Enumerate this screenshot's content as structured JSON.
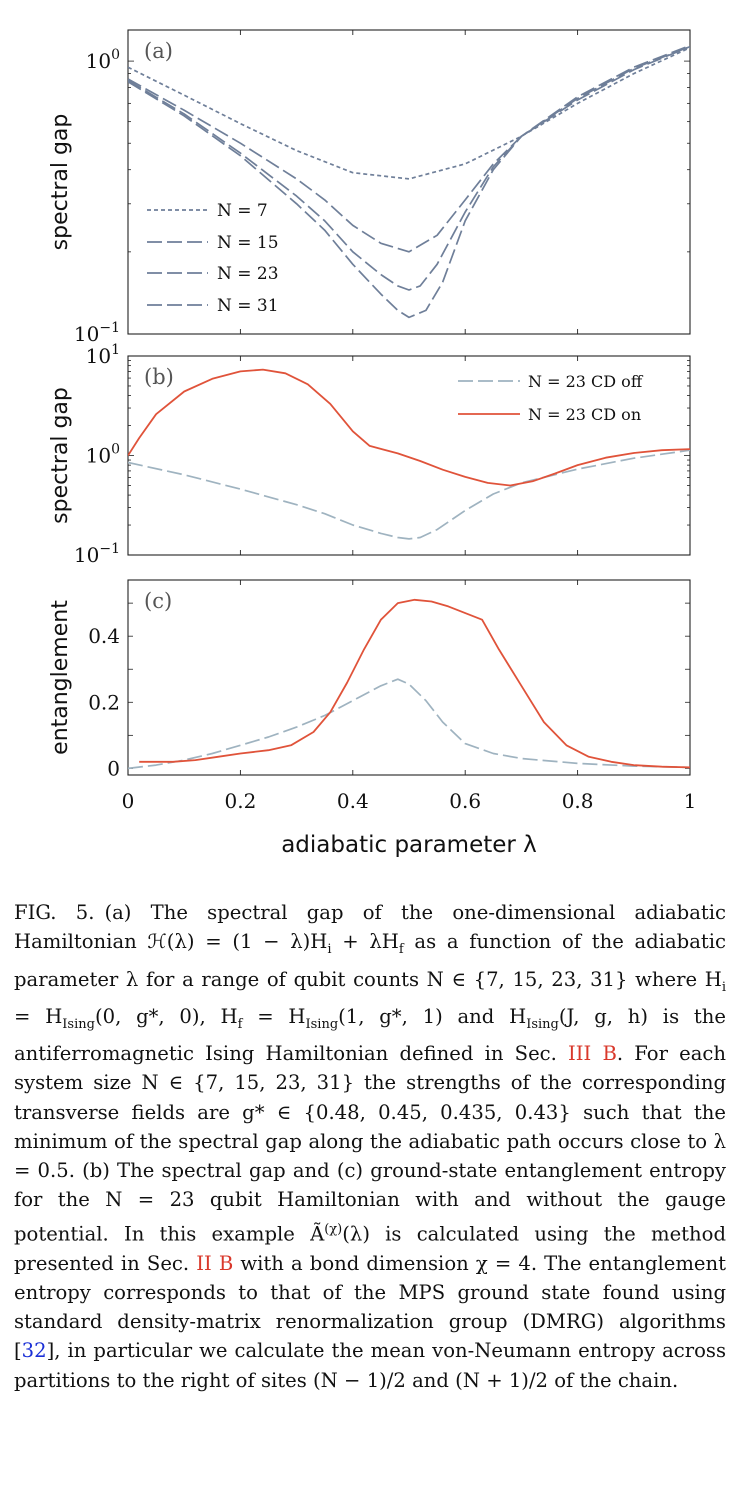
{
  "figure": {
    "xlabel": "adiabatic parameter λ",
    "xticks": [
      "0",
      "0.2",
      "0.4",
      "0.6",
      "0.8",
      "1"
    ],
    "xlim": [
      0,
      1
    ],
    "panels": [
      {
        "id": "a",
        "label": "(a)",
        "ylabel": "spectral gap",
        "scale": "log",
        "ylim": [
          0.1,
          1.3
        ],
        "yticks": [
          {
            "v": 1,
            "b": "10",
            "e": "0"
          },
          {
            "v": 0.1,
            "b": "10",
            "e": "−1"
          }
        ],
        "legend_position": "lower-left"
      },
      {
        "id": "b",
        "label": "(b)",
        "ylabel": "spectral gap",
        "scale": "log",
        "ylim": [
          0.1,
          10
        ],
        "yticks": [
          {
            "v": 10,
            "b": "10",
            "e": "1"
          },
          {
            "v": 1,
            "b": "10",
            "e": "0"
          },
          {
            "v": 0.1,
            "b": "10",
            "e": "−1"
          }
        ],
        "legend_position": "top-right"
      },
      {
        "id": "c",
        "label": "(c)",
        "ylabel": "entanglement",
        "scale": "linear",
        "ylim": [
          -0.02,
          0.57
        ],
        "yticks": [
          {
            "v": 0.4,
            "t": "0.4"
          },
          {
            "v": 0.2,
            "t": "0.2"
          },
          {
            "v": 0,
            "t": "0"
          }
        ],
        "legend_position": "none"
      }
    ]
  },
  "chart_data": [
    {
      "type": "line",
      "panel": "a",
      "y_scale": "log",
      "xlim": [
        0,
        1
      ],
      "ylim": [
        0.1,
        1.3
      ],
      "series": [
        {
          "name": "N = 7",
          "style": "dotted",
          "color": "#6f7f99",
          "x": [
            0,
            0.1,
            0.2,
            0.3,
            0.4,
            0.5,
            0.6,
            0.7,
            0.8,
            0.9,
            1.0
          ],
          "y": [
            0.95,
            0.75,
            0.59,
            0.47,
            0.39,
            0.37,
            0.42,
            0.53,
            0.7,
            0.9,
            1.12
          ]
        },
        {
          "name": "N = 15",
          "style": "dashed",
          "color": "#6f7f99",
          "x": [
            0,
            0.1,
            0.2,
            0.3,
            0.35,
            0.4,
            0.45,
            0.5,
            0.55,
            0.6,
            0.65,
            0.7,
            0.8,
            0.9,
            1.0
          ],
          "y": [
            0.86,
            0.66,
            0.5,
            0.37,
            0.31,
            0.25,
            0.215,
            0.2,
            0.23,
            0.31,
            0.42,
            0.53,
            0.72,
            0.93,
            1.13
          ]
        },
        {
          "name": "N = 23",
          "style": "dashed",
          "color": "#6f7f99",
          "x": [
            0,
            0.1,
            0.2,
            0.3,
            0.35,
            0.4,
            0.45,
            0.48,
            0.5,
            0.52,
            0.55,
            0.6,
            0.65,
            0.7,
            0.8,
            0.9,
            1.0
          ],
          "y": [
            0.85,
            0.64,
            0.46,
            0.32,
            0.26,
            0.2,
            0.165,
            0.15,
            0.145,
            0.15,
            0.18,
            0.28,
            0.41,
            0.53,
            0.73,
            0.94,
            1.13
          ]
        },
        {
          "name": "N = 31",
          "style": "dashed",
          "color": "#6f7f99",
          "x": [
            0,
            0.1,
            0.2,
            0.3,
            0.35,
            0.4,
            0.45,
            0.48,
            0.5,
            0.53,
            0.56,
            0.6,
            0.65,
            0.7,
            0.8,
            0.9,
            1.0
          ],
          "y": [
            0.84,
            0.63,
            0.45,
            0.3,
            0.24,
            0.18,
            0.14,
            0.122,
            0.115,
            0.122,
            0.155,
            0.26,
            0.4,
            0.53,
            0.74,
            0.95,
            1.14
          ]
        }
      ]
    },
    {
      "type": "line",
      "panel": "b",
      "y_scale": "log",
      "xlim": [
        0,
        1
      ],
      "ylim": [
        0.1,
        10
      ],
      "series": [
        {
          "name": "N = 23 CD off",
          "style": "dashed",
          "color": "#9fb3c0",
          "x": [
            0,
            0.1,
            0.2,
            0.3,
            0.35,
            0.4,
            0.45,
            0.48,
            0.5,
            0.52,
            0.55,
            0.6,
            0.65,
            0.7,
            0.8,
            0.9,
            1.0
          ],
          "y": [
            0.85,
            0.64,
            0.46,
            0.32,
            0.26,
            0.2,
            0.165,
            0.15,
            0.145,
            0.15,
            0.18,
            0.28,
            0.41,
            0.53,
            0.73,
            0.94,
            1.13
          ]
        },
        {
          "name": "N = 23 CD on",
          "style": "solid",
          "color": "#e0533a",
          "x": [
            0,
            0.02,
            0.05,
            0.1,
            0.15,
            0.2,
            0.24,
            0.28,
            0.32,
            0.36,
            0.4,
            0.43,
            0.48,
            0.52,
            0.56,
            0.6,
            0.64,
            0.68,
            0.72,
            0.76,
            0.8,
            0.85,
            0.9,
            0.95,
            1.0
          ],
          "y": [
            1.0,
            1.5,
            2.6,
            4.4,
            5.9,
            7.0,
            7.3,
            6.7,
            5.2,
            3.3,
            1.75,
            1.25,
            1.05,
            0.88,
            0.72,
            0.61,
            0.53,
            0.5,
            0.55,
            0.66,
            0.8,
            0.95,
            1.06,
            1.13,
            1.16
          ]
        }
      ]
    },
    {
      "type": "line",
      "panel": "c",
      "y_scale": "linear",
      "xlim": [
        0,
        1
      ],
      "ylim": [
        -0.02,
        0.57
      ],
      "series": [
        {
          "name": "N = 23 CD off",
          "style": "dashed",
          "color": "#9fb3c0",
          "x": [
            0,
            0.05,
            0.1,
            0.15,
            0.2,
            0.25,
            0.3,
            0.35,
            0.4,
            0.45,
            0.48,
            0.5,
            0.53,
            0.56,
            0.6,
            0.65,
            0.7,
            0.8,
            0.9,
            1.0
          ],
          "y": [
            0.0,
            0.01,
            0.025,
            0.045,
            0.07,
            0.095,
            0.125,
            0.16,
            0.205,
            0.25,
            0.27,
            0.255,
            0.205,
            0.14,
            0.075,
            0.045,
            0.03,
            0.015,
            0.007,
            0.003
          ]
        },
        {
          "name": "N = 23 CD on",
          "style": "solid",
          "color": "#e0533a",
          "x": [
            0.02,
            0.05,
            0.08,
            0.12,
            0.16,
            0.2,
            0.25,
            0.29,
            0.33,
            0.36,
            0.39,
            0.42,
            0.45,
            0.48,
            0.51,
            0.54,
            0.57,
            0.6,
            0.63,
            0.66,
            0.7,
            0.74,
            0.78,
            0.82,
            0.86,
            0.9,
            0.95,
            1.0
          ],
          "y": [
            0.02,
            0.02,
            0.02,
            0.025,
            0.035,
            0.045,
            0.055,
            0.07,
            0.11,
            0.17,
            0.26,
            0.36,
            0.45,
            0.5,
            0.51,
            0.505,
            0.49,
            0.47,
            0.45,
            0.36,
            0.25,
            0.14,
            0.07,
            0.035,
            0.02,
            0.01,
            0.005,
            0.003
          ]
        }
      ]
    }
  ],
  "caption": {
    "label": "FIG. 5.",
    "segments": [
      {
        "t": "(a) The spectral gap of the one-dimensional adiabatic Hamiltonian ℋ(λ) = (1 − λ)H"
      },
      {
        "t": "i",
        "sub": true
      },
      {
        "t": " + λH"
      },
      {
        "t": "f",
        "sub": true
      },
      {
        "t": " as a function of the adiabatic parameter λ for a range of qubit counts N ∈ {7, 15, 23, 31} where H"
      },
      {
        "t": "i",
        "sub": true
      },
      {
        "t": " = H"
      },
      {
        "t": "Ising",
        "sub": true
      },
      {
        "t": "(0, g*, 0), H"
      },
      {
        "t": "f",
        "sub": true
      },
      {
        "t": " = H"
      },
      {
        "t": "Ising",
        "sub": true
      },
      {
        "t": "(1, g*, 1) and H"
      },
      {
        "t": "Ising",
        "sub": true
      },
      {
        "t": "(J, g, h) is the antiferromagnetic Ising Hamiltonian defined in Sec. "
      },
      {
        "t": "III B",
        "cls": "ref"
      },
      {
        "t": ". For each system size N ∈ {7, 15, 23, 31} the strengths of the corresponding transverse fields are g* ∈ {0.48, 0.45, 0.435, 0.43} such that the minimum of the spectral gap along the adiabatic path occurs close to λ = 0.5. (b) The spectral gap and (c) ground-state entanglement entropy for the N = 23 qubit Hamiltonian with and without the gauge potential. In this example Ã"
      },
      {
        "t": "(χ)",
        "sup": true
      },
      {
        "t": "(λ) is calculated using the method presented in Sec. "
      },
      {
        "t": "II B",
        "cls": "ref"
      },
      {
        "t": " with a bond dimension χ = 4. The entanglement entropy corresponds to that of the MPS ground state found using standard density-matrix renormalization group (DMRG) algorithms ["
      },
      {
        "t": "32",
        "cls": "cite"
      },
      {
        "t": "], in particular we calculate the mean von-Neumann entropy across partitions to the right of sites (N − 1)/2 and (N + 1)/2 of the chain."
      }
    ]
  }
}
